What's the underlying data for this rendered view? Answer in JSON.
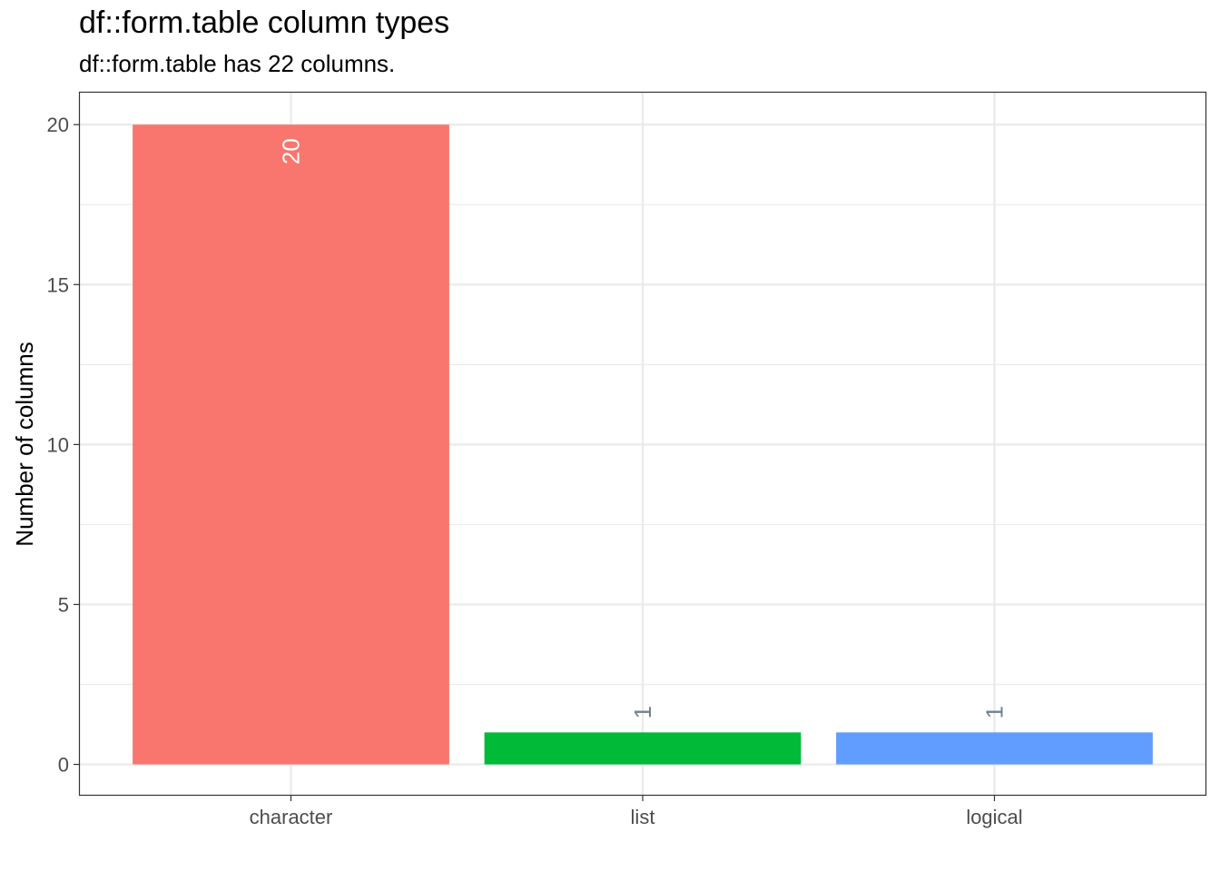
{
  "chart_data": {
    "type": "bar",
    "title": "df::form.table column types",
    "subtitle": "df::form.table has 22 columns.",
    "xlabel": "",
    "ylabel": "Number of columns",
    "categories": [
      "character",
      "list",
      "logical"
    ],
    "values": [
      20,
      1,
      1
    ],
    "data_labels": [
      "20",
      "1",
      "1"
    ],
    "colors": [
      "#F8766D",
      "#00BA38",
      "#619CFF"
    ],
    "label_colors": [
      "#FFFFFF",
      "#708090",
      "#708090"
    ],
    "ylim": [
      -0.95,
      21
    ],
    "yticks": [
      0,
      5,
      10,
      15,
      20
    ],
    "ytick_labels": [
      "0",
      "5",
      "10",
      "15",
      "20"
    ],
    "grid": true,
    "legend": "none"
  }
}
